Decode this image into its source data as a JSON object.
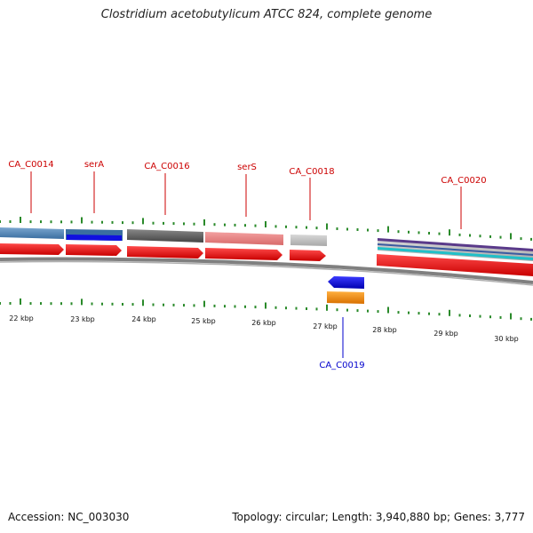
{
  "title": "Clostridium acetobutylicum ATCC 824, complete genome",
  "footer": {
    "accession": "Accession: NC_003030",
    "summary": "Topology: circular; Length: 3,940,880 bp; Genes: 3,777"
  },
  "scale_labels": [
    "22 kbp",
    "23 kbp",
    "24 kbp",
    "25 kbp",
    "26 kbp",
    "27 kbp",
    "28 kbp",
    "29 kbp",
    "30 kbp"
  ],
  "gene_labels": {
    "ca_c0014": "CA_C0014",
    "sera": "serA",
    "ca_c0016": "CA_C0016",
    "sers": "serS",
    "ca_c0018": "CA_C0018",
    "ca_c0020": "CA_C0020",
    "ca_c0019": "CA_C0019"
  },
  "colors": {
    "forward_cds": "#ee0000",
    "reverse_cds": "#0000dd",
    "reverse_feature": "#f08a00",
    "backbone": "#808080",
    "ticks": "#2a8a2a",
    "label_forward": "#cc0000",
    "label_reverse": "#0000cc"
  }
}
